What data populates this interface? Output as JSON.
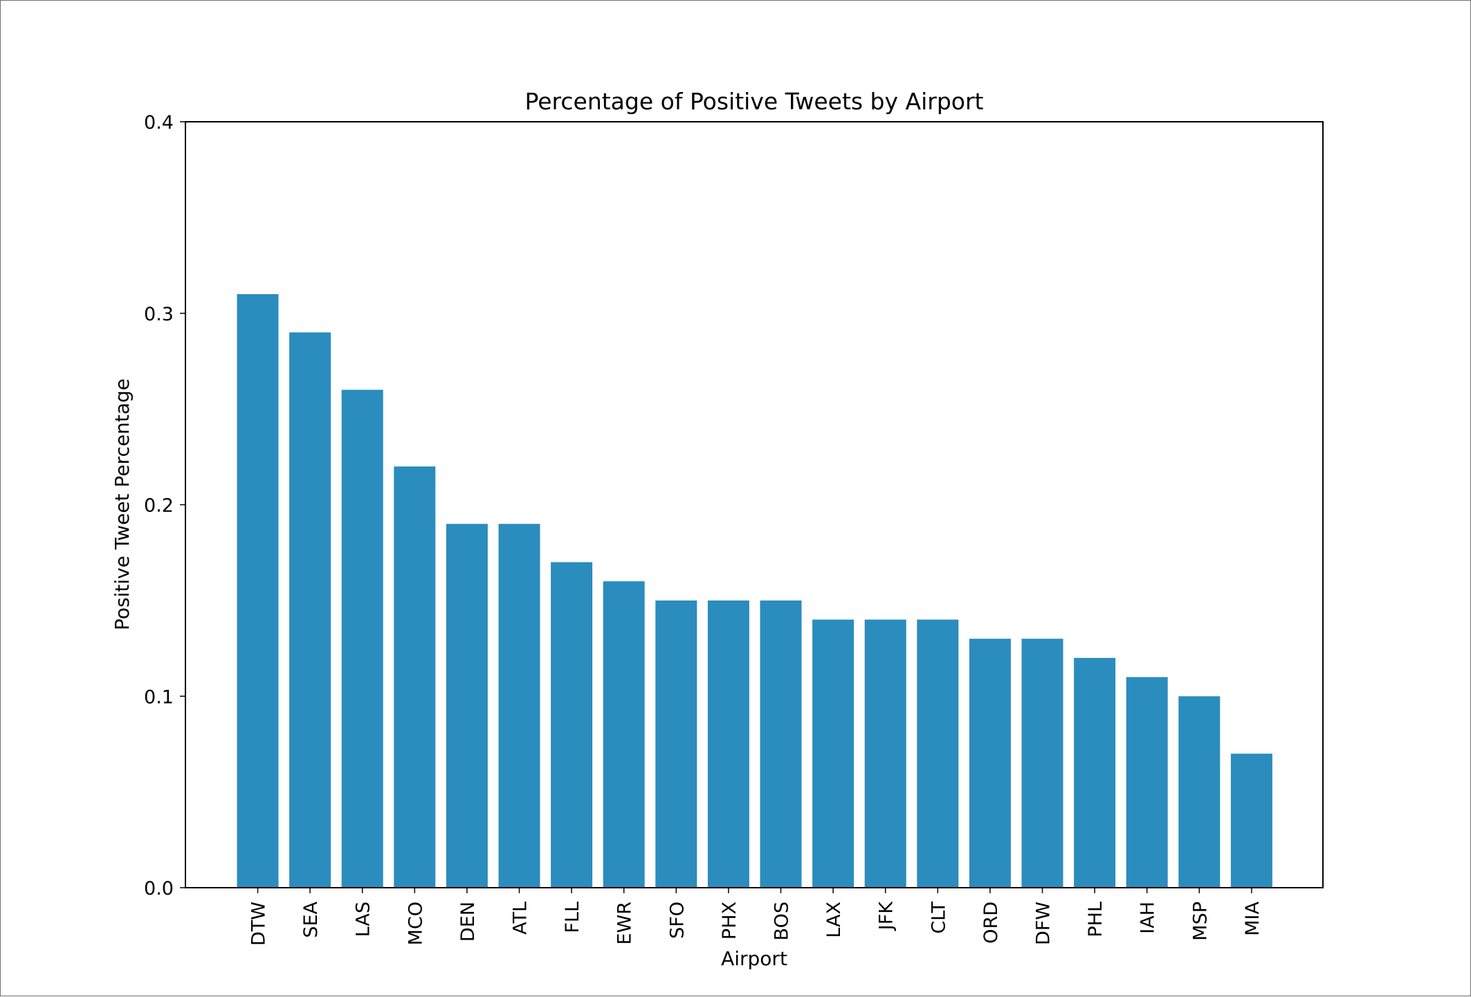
{
  "chart_data": {
    "type": "bar",
    "title": "Percentage of Positive Tweets by Airport",
    "xlabel": "Airport",
    "ylabel": "Positive Tweet Percentage",
    "categories": [
      "DTW",
      "SEA",
      "LAS",
      "MCO",
      "DEN",
      "ATL",
      "FLL",
      "EWR",
      "SFO",
      "PHX",
      "BOS",
      "LAX",
      "JFK",
      "CLT",
      "ORD",
      "DFW",
      "PHL",
      "IAH",
      "MSP",
      "MIA"
    ],
    "values": [
      0.31,
      0.29,
      0.26,
      0.22,
      0.19,
      0.19,
      0.17,
      0.16,
      0.15,
      0.15,
      0.15,
      0.14,
      0.14,
      0.14,
      0.13,
      0.13,
      0.12,
      0.11,
      0.1,
      0.07
    ],
    "ylim": [
      0,
      0.4
    ],
    "yticks": [
      "0.0",
      "0.1",
      "0.2",
      "0.3",
      "0.4"
    ],
    "bar_color": "#2b8cbe",
    "grid": false,
    "legend": "none"
  }
}
